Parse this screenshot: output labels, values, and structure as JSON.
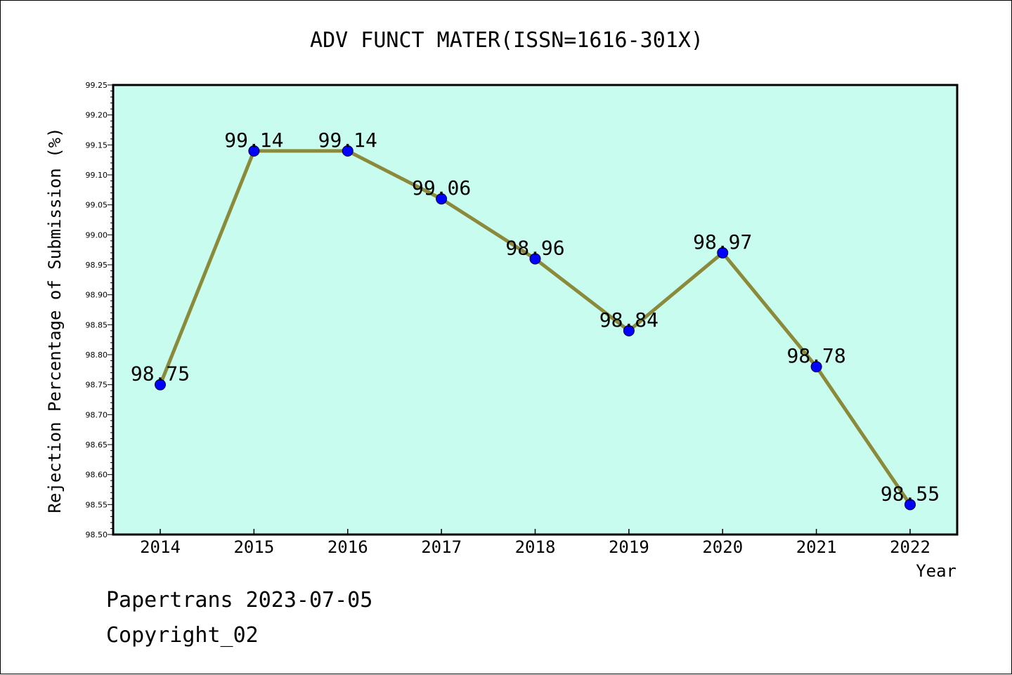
{
  "chart_data": {
    "type": "line",
    "title": "ADV FUNCT MATER(ISSN=1616-301X)",
    "xlabel": "Year",
    "ylabel": "Rejection Percentage of Submission (%)",
    "categories": [
      "2014",
      "2015",
      "2016",
      "2017",
      "2018",
      "2019",
      "2020",
      "2021",
      "2022"
    ],
    "values": [
      98.75,
      99.14,
      99.14,
      99.06,
      98.96,
      98.84,
      98.97,
      98.78,
      98.55
    ],
    "data_labels": [
      "98.75",
      "99.14",
      "99.14",
      "99.06",
      "98.96",
      "98.84",
      "98.97",
      "98.78",
      "98.55"
    ],
    "ylim": [
      98.5,
      99.25
    ],
    "yticks": [
      "98.50",
      "98.55",
      "98.60",
      "98.65",
      "98.70",
      "98.75",
      "98.80",
      "98.85",
      "98.90",
      "98.95",
      "99.00",
      "99.05",
      "99.10",
      "99.15",
      "99.20",
      "99.25"
    ],
    "grid": false,
    "colors": {
      "plot_background": "#c8fcee",
      "line": "#8b8a3a",
      "marker": "#0000ff"
    }
  },
  "footer": {
    "line1": "Papertrans 2023-07-05",
    "line2": "Copyright_02"
  }
}
